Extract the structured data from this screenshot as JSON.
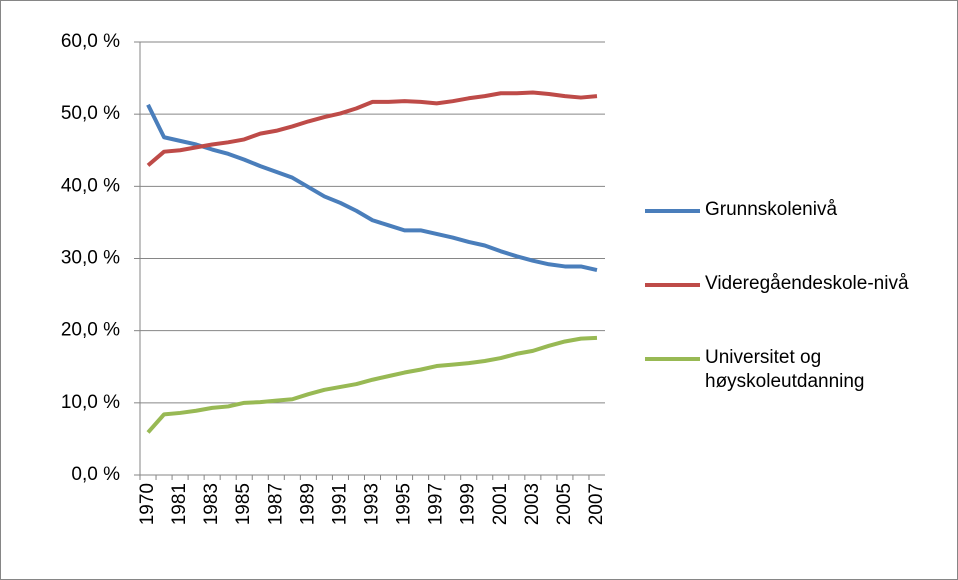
{
  "chart_data": {
    "type": "line",
    "categories": [
      "1970",
      null,
      "1981",
      null,
      "1983",
      null,
      "1985",
      null,
      "1987",
      null,
      "1989",
      null,
      "1991",
      null,
      "1993",
      null,
      "1995",
      null,
      "1997",
      null,
      "1999",
      null,
      "2001",
      null,
      "2003",
      null,
      "2005",
      null,
      "2007"
    ],
    "series": [
      {
        "name": "Grunnskolenivå",
        "color": "#4a7ebb",
        "values": [
          51.3,
          46.8,
          46.3,
          45.8,
          45.1,
          44.5,
          43.7,
          42.8,
          42.0,
          41.2,
          39.9,
          38.6,
          37.7,
          36.6,
          35.3,
          34.6,
          33.9,
          33.9,
          33.4,
          32.9,
          32.3,
          31.8,
          31.0,
          30.3,
          29.7,
          29.2,
          28.9,
          28.9,
          28.4
        ]
      },
      {
        "name": "Videregåendeskole-nivå",
        "color": "#be4b48",
        "values": [
          42.9,
          44.8,
          45.0,
          45.4,
          45.8,
          46.1,
          46.5,
          47.3,
          47.7,
          48.3,
          49.0,
          49.6,
          50.1,
          50.8,
          51.7,
          51.7,
          51.8,
          51.7,
          51.5,
          51.8,
          52.2,
          52.5,
          52.9,
          52.9,
          53.0,
          52.8,
          52.5,
          52.3,
          52.5
        ]
      },
      {
        "name": "Universitet og høyskoleutdanning",
        "color": "#98b954",
        "values": [
          5.9,
          8.4,
          8.6,
          8.9,
          9.3,
          9.5,
          10.0,
          10.1,
          10.3,
          10.5,
          11.2,
          11.8,
          12.2,
          12.6,
          13.2,
          13.7,
          14.2,
          14.6,
          15.1,
          15.3,
          15.5,
          15.8,
          16.2,
          16.8,
          17.2,
          17.9,
          18.5,
          18.9,
          19.0
        ]
      }
    ],
    "ylim": [
      0,
      60
    ],
    "yticks": [
      {
        "value": 0,
        "label": "0,0 %"
      },
      {
        "value": 10,
        "label": "10,0 %"
      },
      {
        "value": 20,
        "label": "20,0 %"
      },
      {
        "value": 30,
        "label": "30,0 %"
      },
      {
        "value": 40,
        "label": "40,0 %"
      },
      {
        "value": 50,
        "label": "50,0 %"
      },
      {
        "value": 60,
        "label": "60,0 %"
      }
    ],
    "grid": true,
    "legend": "right"
  }
}
